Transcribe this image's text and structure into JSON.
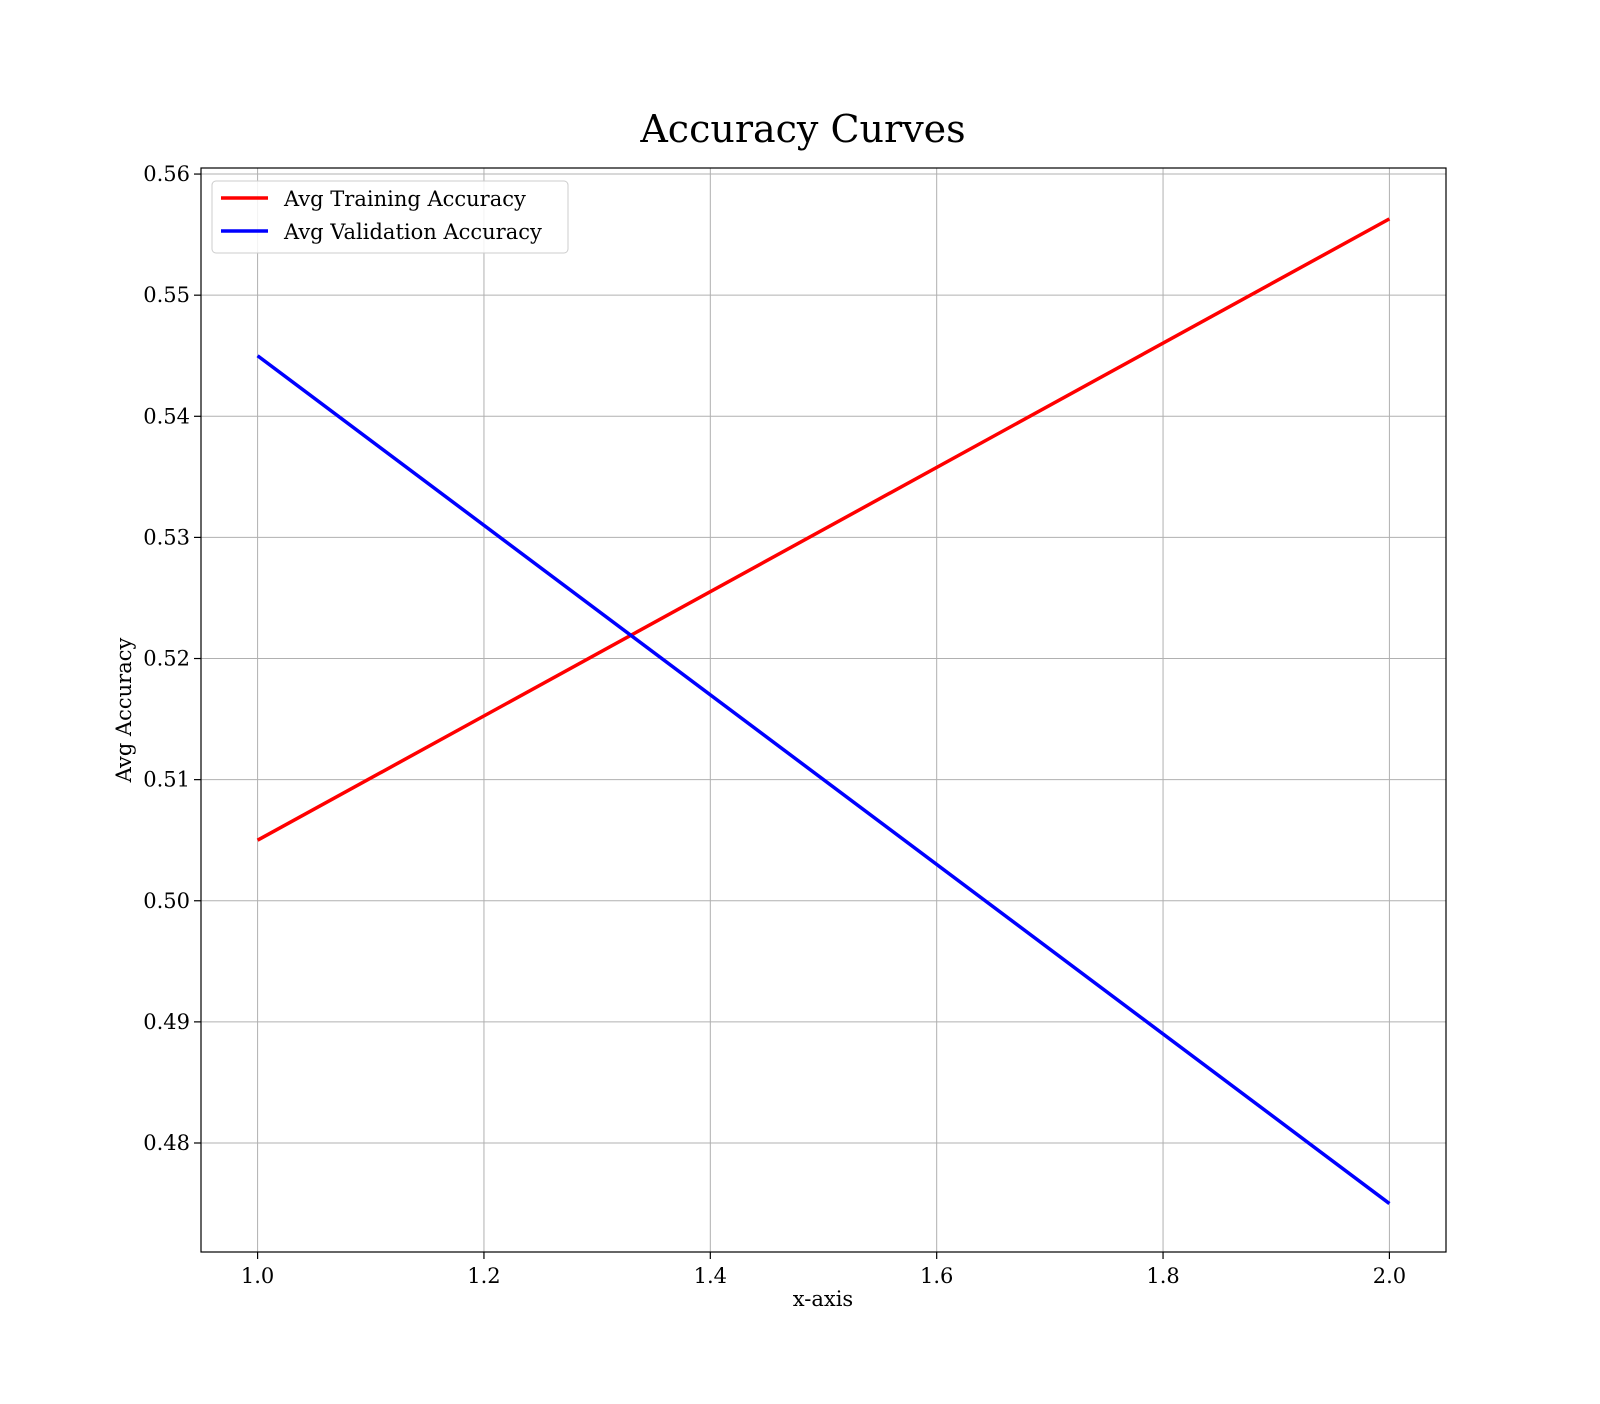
{
  "chart_data": {
    "type": "line",
    "title": "Accuracy Curves",
    "xlabel": "x-axis",
    "ylabel": "Avg Accuracy",
    "x": [
      1.0,
      2.0
    ],
    "xlim": [
      0.95,
      2.05
    ],
    "ylim": [
      0.471,
      0.5605
    ],
    "xticks": [
      1.0,
      1.2,
      1.4,
      1.6,
      1.8,
      2.0
    ],
    "xtick_labels": [
      "1.0",
      "1.2",
      "1.4",
      "1.6",
      "1.8",
      "2.0"
    ],
    "yticks": [
      0.48,
      0.49,
      0.5,
      0.51,
      0.52,
      0.53,
      0.54,
      0.55,
      0.56
    ],
    "ytick_labels": [
      "0.48",
      "0.49",
      "0.50",
      "0.51",
      "0.52",
      "0.53",
      "0.54",
      "0.55",
      "0.56"
    ],
    "grid": true,
    "legend_position": "top-left",
    "series": [
      {
        "name": "Avg Training Accuracy",
        "values": [
          0.505,
          0.5563
        ],
        "color": "#ff0000"
      },
      {
        "name": "Avg Validation Accuracy",
        "values": [
          0.545,
          0.475
        ],
        "color": "#0000ff"
      }
    ]
  }
}
